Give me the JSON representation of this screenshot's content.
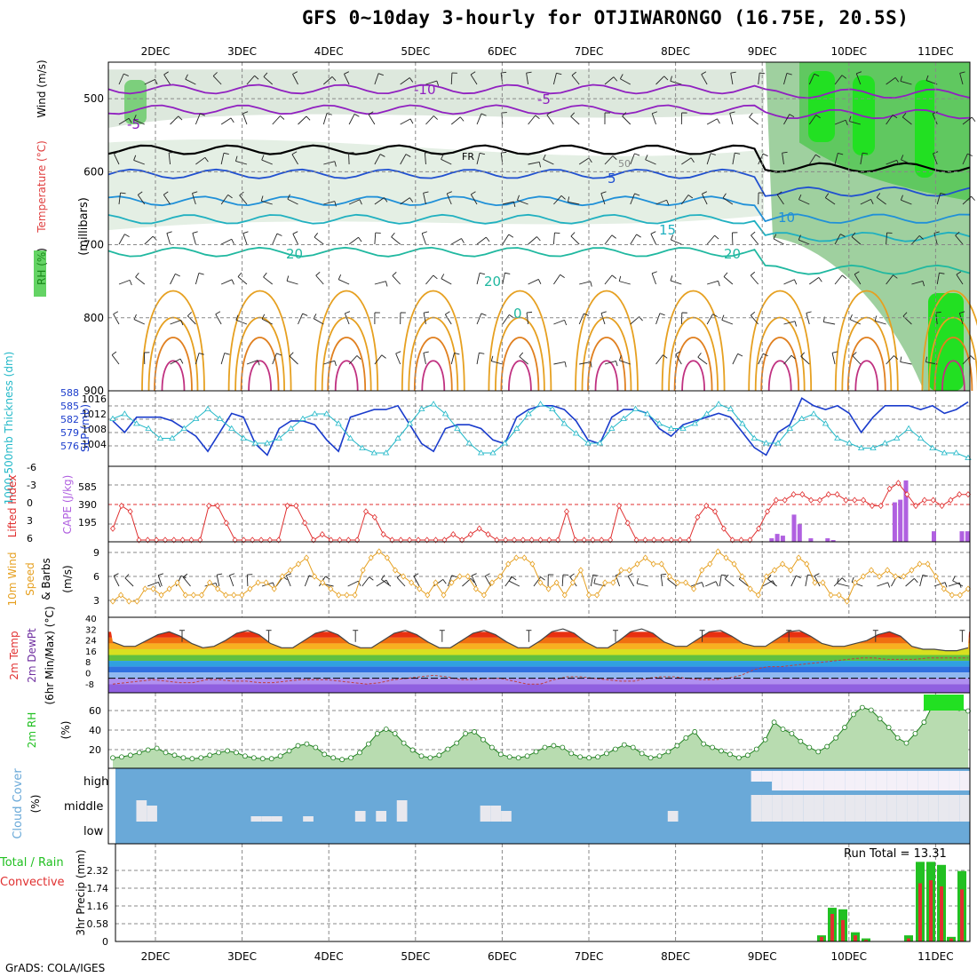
{
  "title": "GFS 0~10day 3-hourly for OTJIWARONGO (16.75E, 20.5S)",
  "credit": "GrADS: COLA/IGES",
  "run_total_label": "Run Total = 13.31",
  "colors": {
    "rh": "#22c022",
    "temp": "#e6a020",
    "dew": "#7030a0",
    "wind": "#e6a020",
    "cape": "#b060e0",
    "lift": "#e03030",
    "slp": "#1a3ccc",
    "thick": "#22b8c8",
    "cloud": "#6aa9d8",
    "rain": "#e03030",
    "total": "#22c022"
  },
  "chart_data": [
    {
      "type": "heatmap",
      "panel": "upper-air",
      "ylabel": {
        "rh": "RH (%)",
        "temp": "Temperature (°C)",
        "wind": "Wind (m/s)",
        "axis": "(millibars)"
      },
      "yticks": [
        "500",
        "600",
        "700",
        "800",
        "900"
      ],
      "x_dates": [
        "2DEC",
        "3DEC",
        "4DEC",
        "5DEC",
        "6DEC",
        "7DEC",
        "8DEC",
        "9DEC",
        "10DEC",
        "11DEC"
      ],
      "contour_labels": [
        "-10",
        "-5",
        "-5",
        "FR",
        "5",
        "10",
        "15",
        "20",
        "20",
        "20",
        "50",
        "0"
      ],
      "isotherm_levels_mb": [
        {
          "t": -10,
          "mb": 490
        },
        {
          "t": -5,
          "mb": 520
        },
        {
          "t": 0,
          "mb": 570
        },
        {
          "t": 5,
          "mb": 605
        },
        {
          "t": 10,
          "mb": 640
        },
        {
          "t": 15,
          "mb": 665
        },
        {
          "t": 20,
          "mb": 710
        }
      ]
    },
    {
      "type": "line",
      "panel": "slp-thickness",
      "ylabel": {
        "left": "1000-500mb Thickness (dm)",
        "right": "SLP (mb)"
      },
      "yticks_left": [
        "588",
        "585",
        "582",
        "579",
        "576"
      ],
      "yticks_right": [
        "1016",
        "1012",
        "1008",
        "1004"
      ],
      "series": [
        {
          "name": "SLP",
          "values": [
            1011,
            1008,
            1012,
            1012,
            1012,
            1011,
            1009,
            1007,
            1003,
            1008,
            1013,
            1012,
            1005,
            1002,
            1009,
            1011,
            1011,
            1010,
            1006,
            1003,
            1012,
            1013,
            1014,
            1014,
            1015,
            1010,
            1005,
            1003,
            1009,
            1010,
            1010,
            1009,
            1006,
            1005,
            1012,
            1014,
            1015,
            1015,
            1014,
            1011,
            1006,
            1005,
            1012,
            1014,
            1014,
            1013,
            1009,
            1007,
            1010,
            1011,
            1012,
            1013,
            1012,
            1008,
            1004,
            1002,
            1008,
            1010,
            1017,
            1015,
            1014,
            1015,
            1013,
            1008,
            1012,
            1015,
            1015,
            1015,
            1014,
            1015,
            1013,
            1014,
            1016
          ]
        },
        {
          "name": "Thickness",
          "values": [
            584,
            585,
            583,
            582,
            580,
            580,
            582,
            584,
            586,
            584,
            582,
            580,
            579,
            579,
            580,
            582,
            584,
            585,
            585,
            583,
            580,
            578,
            577,
            577,
            580,
            583,
            586,
            587,
            585,
            582,
            579,
            577,
            577,
            579,
            582,
            585,
            587,
            586,
            583,
            581,
            579,
            579,
            582,
            584,
            586,
            585,
            583,
            582,
            582,
            583,
            585,
            587,
            586,
            583,
            580,
            579,
            579,
            582,
            584,
            585,
            583,
            580,
            579,
            578,
            578,
            579,
            580,
            582,
            580,
            578,
            577,
            577,
            576
          ]
        }
      ]
    },
    {
      "type": "bar",
      "panel": "cape-lifted",
      "ylabel": {
        "left": "Lifted Index",
        "right": "CAPE (J/kg)"
      },
      "yticks_left": [
        "-6",
        "-3",
        "0",
        "3",
        "6"
      ],
      "yticks_right": [
        "585",
        "390",
        "195"
      ],
      "series": [
        {
          "name": "Lifted Index",
          "values": [
            4,
            0,
            1,
            6,
            6,
            6,
            6,
            6,
            6,
            6,
            6,
            0,
            0,
            3,
            6,
            6,
            6,
            6,
            6,
            6,
            0,
            0,
            3,
            6,
            5,
            6,
            6,
            6,
            6,
            1,
            2,
            5,
            6,
            6,
            6,
            6,
            6,
            6,
            6,
            5,
            6,
            5,
            4,
            5,
            6,
            6,
            6,
            6,
            6,
            6,
            6,
            6,
            1,
            6,
            6,
            6,
            6,
            6,
            0,
            3,
            6,
            6,
            6,
            6,
            6,
            6,
            6,
            2,
            0,
            1,
            4,
            6,
            6,
            6,
            4,
            1,
            -1,
            -1,
            -2,
            -2,
            -1,
            -1,
            -2,
            -2,
            -1,
            -1,
            -1,
            0,
            0,
            -3,
            -4,
            -2,
            0,
            -1,
            -1,
            0,
            -1,
            -2,
            -2
          ]
        },
        {
          "name": "CAPE",
          "values": [
            0,
            40,
            90,
            70,
            0,
            310,
            200,
            0,
            40,
            0,
            0,
            40,
            20,
            0,
            0,
            0,
            0,
            0,
            0,
            0,
            0,
            0,
            0,
            450,
            480,
            700,
            0,
            0,
            0,
            0,
            120,
            0,
            0,
            0,
            0,
            120,
            120
          ]
        }
      ]
    },
    {
      "type": "line",
      "panel": "wind10m",
      "ylabel": "10m Wind Speed & Barbs (m/s)",
      "yticks": [
        "9",
        "6",
        "3"
      ],
      "series": [
        {
          "name": "Speed",
          "values": [
            2,
            3,
            2,
            2,
            4,
            4,
            3,
            4,
            5,
            3,
            3,
            3,
            5,
            4,
            3,
            3,
            3,
            4,
            5,
            5,
            4,
            6,
            7,
            8,
            9,
            6,
            5,
            4,
            3,
            3,
            3,
            7,
            9,
            10,
            9,
            7,
            6,
            5,
            4,
            3,
            5,
            3,
            5,
            6,
            6,
            4,
            3,
            5,
            6,
            8,
            9,
            9,
            8,
            5,
            4,
            5,
            3,
            5,
            7,
            3,
            3,
            5,
            5,
            7,
            7,
            8,
            9,
            8,
            8,
            6,
            5,
            5,
            4,
            7,
            8,
            10,
            9,
            8,
            6,
            4,
            3,
            6,
            7,
            8,
            7,
            9,
            8,
            5,
            5,
            3,
            3,
            2,
            5,
            6,
            7,
            6,
            7,
            6,
            6,
            7,
            8,
            8,
            6,
            4,
            3,
            3,
            4
          ]
        }
      ]
    },
    {
      "type": "area",
      "panel": "temp2m",
      "ylabel": {
        "temp": "2m Temp",
        "dew": "2m DewPt",
        "minmax": "(6hr Min/Max) (°C)"
      },
      "yticks": [
        "40",
        "32",
        "24",
        "16",
        "8",
        "0",
        "-8"
      ],
      "series": [
        {
          "name": "Temp",
          "values": [
            25,
            22,
            22,
            26,
            30,
            32,
            29,
            24,
            21,
            22,
            26,
            31,
            33,
            30,
            24,
            21,
            21,
            26,
            31,
            33,
            30,
            24,
            21,
            21,
            26,
            31,
            33,
            30,
            25,
            21,
            21,
            26,
            31,
            33,
            30,
            25,
            21,
            21,
            26,
            32,
            34,
            31,
            25,
            21,
            21,
            26,
            32,
            34,
            31,
            25,
            22,
            22,
            27,
            32,
            33,
            29,
            24,
            22,
            22,
            27,
            32,
            33,
            29,
            24,
            22,
            22,
            24,
            26,
            30,
            32,
            29,
            22,
            20,
            20,
            19,
            19,
            21
          ]
        },
        {
          "name": "DewPt",
          "values": [
            -4,
            -3,
            -2,
            -1,
            -2,
            -3,
            -3,
            -1,
            -1,
            -2,
            -2,
            -3,
            -3,
            -2,
            -1,
            -1,
            -1,
            -2,
            -3,
            -4,
            -3,
            -1,
            0,
            1,
            2,
            1,
            -1,
            -1,
            0,
            0,
            -2,
            -4,
            -4,
            -1,
            1,
            1,
            0,
            -1,
            -2,
            -2,
            0,
            1,
            1,
            0,
            -1,
            -1,
            0,
            2,
            6,
            8,
            8,
            9,
            10,
            11,
            12,
            13,
            14,
            14,
            13,
            13,
            13,
            14,
            14,
            14,
            14
          ]
        }
      ]
    },
    {
      "type": "area",
      "panel": "rh2m",
      "ylabel": "2m RH (%)",
      "yticks": [
        "60",
        "40",
        "20"
      ],
      "series": [
        {
          "name": "RH",
          "values": [
            10,
            11,
            13,
            16,
            19,
            21,
            16,
            13,
            10,
            9,
            10,
            13,
            16,
            18,
            16,
            12,
            10,
            9,
            9,
            12,
            18,
            24,
            26,
            22,
            14,
            10,
            8,
            10,
            16,
            26,
            38,
            43,
            38,
            27,
            19,
            12,
            10,
            13,
            20,
            27,
            38,
            40,
            31,
            22,
            14,
            11,
            10,
            12,
            17,
            22,
            24,
            22,
            15,
            11,
            10,
            11,
            15,
            20,
            25,
            22,
            15,
            10,
            12,
            17,
            24,
            33,
            40,
            26,
            22,
            18,
            14,
            10,
            13,
            20,
            31,
            51,
            43,
            38,
            29,
            22,
            17,
            23,
            33,
            45,
            60,
            68,
            65,
            55,
            45,
            33,
            27,
            38,
            51,
            71,
            80,
            79,
            67,
            64
          ]
        }
      ]
    },
    {
      "type": "bar",
      "panel": "cloud",
      "ylabel": "Cloud Cover (%)",
      "yticks": [
        "high",
        "middle",
        "low"
      ],
      "series": [
        {
          "name": "Cloud",
          "values": [
            0,
            0,
            40,
            30,
            0,
            0,
            0,
            0,
            0,
            0,
            0,
            0,
            0,
            10,
            10,
            10,
            0,
            0,
            10,
            0,
            0,
            0,
            0,
            20,
            0,
            20,
            0,
            40,
            0,
            0,
            0,
            0,
            0,
            0,
            0,
            30,
            30,
            20,
            0,
            0,
            0,
            0,
            0,
            0,
            0,
            0,
            0,
            0,
            0,
            0,
            0,
            0,
            0,
            20,
            0,
            0,
            0,
            0,
            0,
            0,
            0,
            60,
            80,
            90,
            100,
            100,
            90,
            90,
            100,
            100,
            100,
            100,
            100,
            100,
            100,
            100,
            100,
            100,
            100,
            100,
            100,
            100
          ]
        }
      ]
    },
    {
      "type": "bar",
      "panel": "precip",
      "ylabel": {
        "left": "Total / Rain",
        "right": "Convective",
        "axis": "3hr Precip (mm)"
      },
      "yticks": [
        "2.32",
        "1.74",
        "1.16",
        "0.58",
        "0"
      ],
      "series": [
        {
          "name": "Total",
          "values": [
            0.2,
            1.1,
            1.05,
            0.3,
            0.1,
            0.2,
            2.6,
            2.6,
            2.5,
            0.15,
            2.3
          ]
        },
        {
          "name": "Convective",
          "values": [
            0.15,
            0.9,
            0.7,
            0.2,
            0.05,
            0.1,
            1.9,
            2.0,
            1.8,
            0.1,
            1.7
          ]
        }
      ]
    }
  ]
}
